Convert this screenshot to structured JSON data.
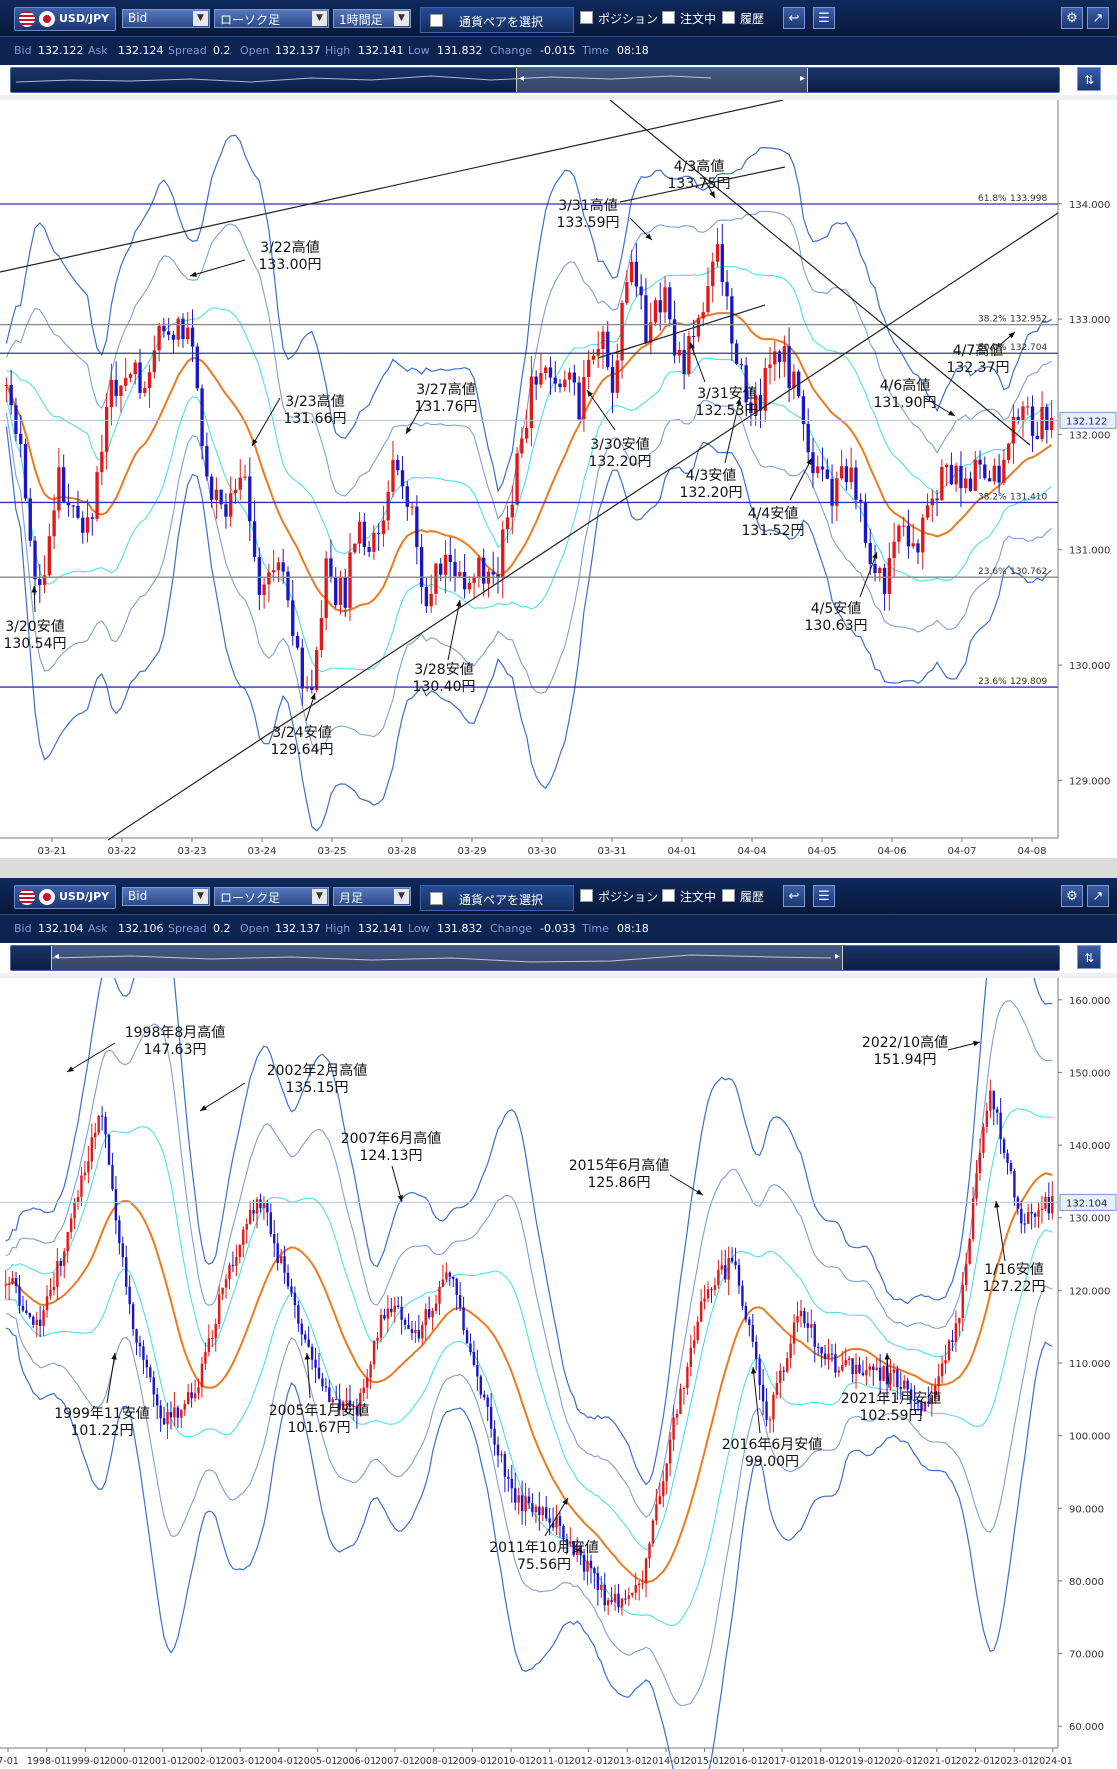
{
  "panels": [
    {
      "toolbar": {
        "pair": "USD/JPY",
        "price_type": "Bid",
        "chart_type": "ローソク足",
        "timeframe": "1時間足",
        "select_pair": "通貨ペアを選択",
        "position": "ポジション",
        "orders": "注文中",
        "history": "履歴"
      },
      "info": {
        "bid_label": "Bid",
        "bid": "132.122",
        "ask_label": "Ask",
        "ask": "132.124",
        "spread_label": "Spread",
        "spread": "0.2",
        "open_label": "Open",
        "open": "132.137",
        "high_label": "High",
        "high": "132.141",
        "low_label": "Low",
        "low": "131.832",
        "change_label": "Change",
        "change": "-0.015",
        "time_label": "Time",
        "time": "08:18"
      },
      "current_price": "132.122",
      "y_ticks": [
        "129.000",
        "130.000",
        "131.000",
        "132.000",
        "133.000",
        "134.000"
      ],
      "x_ticks": [
        "03-21",
        "03-22",
        "03-23",
        "03-24",
        "03-25",
        "03-28",
        "03-29",
        "03-30",
        "03-31",
        "04-01",
        "04-04",
        "04-05",
        "04-06",
        "04-07",
        "04-08"
      ],
      "fib_lines": [
        {
          "pct": "61.8%",
          "value": "133.998",
          "color": "#3030b0"
        },
        {
          "pct": "38.2%",
          "value": "132.952",
          "color": "#888888"
        },
        {
          "pct": "50.0%",
          "value": "132.704",
          "color": "#3030b0"
        },
        {
          "pct": "38.2%",
          "value": "131.410",
          "color": "#3030b0"
        },
        {
          "pct": "23.6%",
          "value": "130.762",
          "color": "#888888"
        },
        {
          "pct": "23.6%",
          "value": "129.809",
          "color": "#3030b0"
        }
      ],
      "annotations": [
        {
          "l1": "3/22高値",
          "l2": "133.00円"
        },
        {
          "l1": "3/23高値",
          "l2": "131.66円"
        },
        {
          "l1": "3/20安値",
          "l2": "130.54円"
        },
        {
          "l1": "3/24安値",
          "l2": "129.64円"
        },
        {
          "l1": "3/27高値",
          "l2": "131.76円"
        },
        {
          "l1": "3/28安値",
          "l2": "130.40円"
        },
        {
          "l1": "3/31高値",
          "l2": "133.59円"
        },
        {
          "l1": "4/3高値",
          "l2": "133.75円"
        },
        {
          "l1": "3/30安値",
          "l2": "132.20円"
        },
        {
          "l1": "3/31安値",
          "l2": "132.53円"
        },
        {
          "l1": "4/3安値",
          "l2": "132.20円"
        },
        {
          "l1": "4/4安値",
          "l2": "131.52円"
        },
        {
          "l1": "4/5安値",
          "l2": "130.63円"
        },
        {
          "l1": "4/6高値",
          "l2": "131.90円"
        },
        {
          "l1": "4/7高値",
          "l2": "132.37円"
        }
      ]
    },
    {
      "toolbar": {
        "pair": "USD/JPY",
        "price_type": "Bid",
        "chart_type": "ローソク足",
        "timeframe": "月足",
        "select_pair": "通貨ペアを選択",
        "position": "ポジション",
        "orders": "注文中",
        "history": "履歴"
      },
      "info": {
        "bid_label": "Bid",
        "bid": "132.104",
        "ask_label": "Ask",
        "ask": "132.106",
        "spread_label": "Spread",
        "spread": "0.2",
        "open_label": "Open",
        "open": "132.137",
        "high_label": "High",
        "high": "132.141",
        "low_label": "Low",
        "low": "131.832",
        "change_label": "Change",
        "change": "-0.033",
        "time_label": "Time",
        "time": "08:18"
      },
      "current_price": "132.104",
      "y_ticks": [
        "60.000",
        "70.000",
        "80.000",
        "90.000",
        "100.000",
        "110.000",
        "120.000",
        "130.000",
        "140.000",
        "150.000",
        "160.000"
      ],
      "x_ticks": [
        "7-01",
        "1998-01",
        "1999-01",
        "2000-01",
        "2001-01",
        "2002-01",
        "2003-01",
        "2004-01",
        "2005-01",
        "2006-01",
        "2007-01",
        "2008-01",
        "2009-01",
        "2010-01",
        "2011-01",
        "2012-01",
        "2013-01",
        "2014-01",
        "2015-01",
        "2016-01",
        "2017-01",
        "2018-01",
        "2019-01",
        "2020-01",
        "2021-01",
        "2022-01",
        "2023-01",
        "2024-01"
      ],
      "annotations": [
        {
          "l1": "1998年8月高値",
          "l2": "147.63円"
        },
        {
          "l1": "2002年2月高値",
          "l2": "135.15円"
        },
        {
          "l1": "2007年6月高値",
          "l2": "124.13円"
        },
        {
          "l1": "2015年6月高値",
          "l2": "125.86円"
        },
        {
          "l1": "2022/10高値",
          "l2": "151.94円"
        },
        {
          "l1": "1/16安値",
          "l2": "127.22円"
        },
        {
          "l1": "1999年11安値",
          "l2": "101.22円"
        },
        {
          "l1": "2005年1月安値",
          "l2": "101.67円"
        },
        {
          "l1": "2011年10月安値",
          "l2": "75.56円"
        },
        {
          "l1": "2016年6月安値",
          "l2": "99.00円"
        },
        {
          "l1": "2021年1月安値",
          "l2": "102.59円"
        }
      ]
    }
  ],
  "chart_data": [
    {
      "type": "candlestick",
      "symbol": "USD/JPY",
      "timeframe": "1時間足",
      "ylim": [
        128.5,
        134.9
      ],
      "x_range": [
        "03-20",
        "04-08"
      ],
      "overlays": [
        "bollinger bands (±1σ, ±2σ, ±3σ)",
        "moving average"
      ],
      "close_path": [
        {
          "x": "03-20",
          "y": 132.6
        },
        {
          "x": "03-20",
          "y": 131.6
        },
        {
          "x": "03-20",
          "y": 130.6
        },
        {
          "x": "03-21",
          "y": 131.6
        },
        {
          "x": "03-21",
          "y": 131.2
        },
        {
          "x": "03-21",
          "y": 131.3
        },
        {
          "x": "03-22",
          "y": 132.3
        },
        {
          "x": "03-22",
          "y": 132.6
        },
        {
          "x": "03-22",
          "y": 132.4
        },
        {
          "x": "03-22",
          "y": 132.8
        },
        {
          "x": "03-23",
          "y": 133.0
        },
        {
          "x": "03-23",
          "y": 132.7
        },
        {
          "x": "03-23",
          "y": 131.4
        },
        {
          "x": "03-23",
          "y": 131.3
        },
        {
          "x": "03-24",
          "y": 131.66
        },
        {
          "x": "03-24",
          "y": 130.7
        },
        {
          "x": "03-24",
          "y": 130.9
        },
        {
          "x": "03-24",
          "y": 130.3
        },
        {
          "x": "03-25",
          "y": 129.64
        },
        {
          "x": "03-25",
          "y": 130.8
        },
        {
          "x": "03-25",
          "y": 130.6
        },
        {
          "x": "03-27",
          "y": 131.2
        },
        {
          "x": "03-27",
          "y": 131.0
        },
        {
          "x": "03-28",
          "y": 131.76
        },
        {
          "x": "03-28",
          "y": 131.3
        },
        {
          "x": "03-28",
          "y": 130.5
        },
        {
          "x": "03-28",
          "y": 131.1
        },
        {
          "x": "03-29",
          "y": 130.6
        },
        {
          "x": "03-29",
          "y": 130.9
        },
        {
          "x": "03-29",
          "y": 130.8
        },
        {
          "x": "03-30",
          "y": 131.5
        },
        {
          "x": "03-30",
          "y": 132.3
        },
        {
          "x": "03-30",
          "y": 132.7
        },
        {
          "x": "03-30",
          "y": 132.5
        },
        {
          "x": "03-31",
          "y": 132.2
        },
        {
          "x": "03-31",
          "y": 132.9
        },
        {
          "x": "03-31",
          "y": 132.5
        },
        {
          "x": "03-31",
          "y": 133.5
        },
        {
          "x": "03-31",
          "y": 132.9
        },
        {
          "x": "04-01",
          "y": 133.3
        },
        {
          "x": "04-01",
          "y": 132.5
        },
        {
          "x": "04-01",
          "y": 133.0
        },
        {
          "x": "04-03",
          "y": 133.7
        },
        {
          "x": "04-03",
          "y": 132.8
        },
        {
          "x": "04-04",
          "y": 132.2
        },
        {
          "x": "04-04",
          "y": 132.4
        },
        {
          "x": "04-04",
          "y": 132.7
        },
        {
          "x": "04-04",
          "y": 132.4
        },
        {
          "x": "04-05",
          "y": 131.6
        },
        {
          "x": "04-05",
          "y": 131.5
        },
        {
          "x": "04-05",
          "y": 131.7
        },
        {
          "x": "04-05",
          "y": 131.1
        },
        {
          "x": "04-06",
          "y": 130.7
        },
        {
          "x": "04-06",
          "y": 131.2
        },
        {
          "x": "04-06",
          "y": 131.0
        },
        {
          "x": "04-06",
          "y": 131.4
        },
        {
          "x": "04-07",
          "y": 131.7
        },
        {
          "x": "04-07",
          "y": 131.6
        },
        {
          "x": "04-07",
          "y": 131.8
        },
        {
          "x": "04-07",
          "y": 131.5
        },
        {
          "x": "04-07",
          "y": 132.3
        },
        {
          "x": "04-08",
          "y": 132.1
        },
        {
          "x": "04-08",
          "y": 132.122
        }
      ]
    },
    {
      "type": "candlestick",
      "symbol": "USD/JPY",
      "timeframe": "月足",
      "ylim": [
        57,
        163
      ],
      "x_range": [
        "1997-01",
        "2024-01"
      ],
      "overlays": [
        "bollinger bands (±1σ, ±2σ, ±3σ)",
        "moving average"
      ],
      "close_path": [
        {
          "x": "1997-01",
          "y": 122
        },
        {
          "x": "1997-06",
          "y": 115
        },
        {
          "x": "1998-01",
          "y": 128
        },
        {
          "x": "1998-08",
          "y": 145
        },
        {
          "x": "1999-01",
          "y": 115
        },
        {
          "x": "1999-11",
          "y": 102
        },
        {
          "x": "2000-06",
          "y": 106
        },
        {
          "x": "2001-03",
          "y": 123
        },
        {
          "x": "2002-02",
          "y": 133
        },
        {
          "x": "2003-01",
          "y": 119
        },
        {
          "x": "2004-01",
          "y": 106
        },
        {
          "x": "2005-01",
          "y": 103
        },
        {
          "x": "2005-12",
          "y": 118
        },
        {
          "x": "2006-06",
          "y": 114
        },
        {
          "x": "2007-06",
          "y": 123
        },
        {
          "x": "2008-06",
          "y": 106
        },
        {
          "x": "2009-01",
          "y": 91
        },
        {
          "x": "2010-01",
          "y": 90
        },
        {
          "x": "2010-09",
          "y": 84
        },
        {
          "x": "2011-10",
          "y": 77
        },
        {
          "x": "2012-06",
          "y": 79
        },
        {
          "x": "2013-05",
          "y": 100
        },
        {
          "x": "2014-12",
          "y": 120
        },
        {
          "x": "2015-06",
          "y": 124
        },
        {
          "x": "2016-06",
          "y": 102
        },
        {
          "x": "2016-12",
          "y": 117
        },
        {
          "x": "2018-01",
          "y": 110
        },
        {
          "x": "2019-01",
          "y": 109
        },
        {
          "x": "2020-01",
          "y": 108
        },
        {
          "x": "2021-01",
          "y": 104
        },
        {
          "x": "2022-01",
          "y": 115
        },
        {
          "x": "2022-10",
          "y": 148
        },
        {
          "x": "2023-01",
          "y": 130
        },
        {
          "x": "2023-04",
          "y": 132
        }
      ]
    }
  ]
}
